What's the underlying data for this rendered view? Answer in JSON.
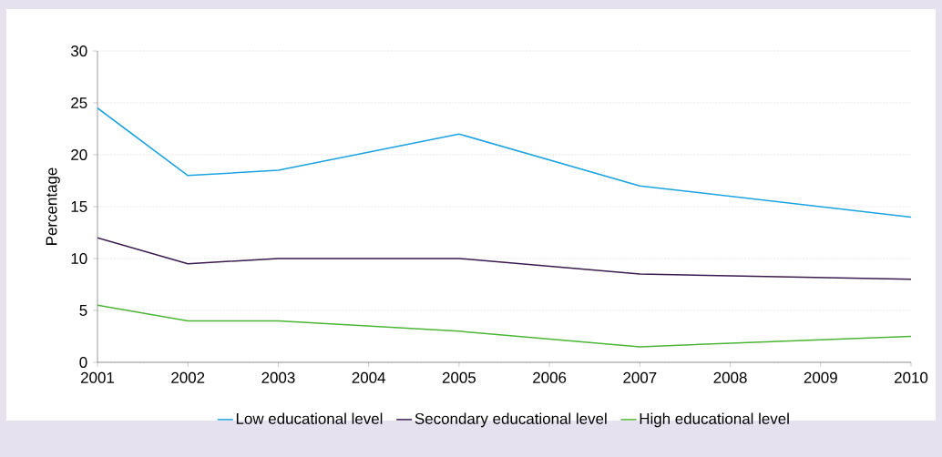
{
  "chart_data": {
    "type": "line",
    "ylabel": "Percentage",
    "x": [
      2001,
      2002,
      2003,
      2005,
      2007,
      2010
    ],
    "xlim": [
      2001,
      2010
    ],
    "xticks": [
      2001,
      2002,
      2003,
      2004,
      2005,
      2006,
      2007,
      2008,
      2009,
      2010
    ],
    "ylim": [
      0,
      30
    ],
    "yticks": [
      0,
      5,
      10,
      15,
      20,
      25,
      30
    ],
    "grid": "y",
    "legend": "bottom",
    "marker": "none",
    "line_style": "solid",
    "series": [
      {
        "name": "Low educational level",
        "color": "#1aa3e0",
        "values": [
          24.5,
          18,
          18.5,
          22,
          17,
          14
        ]
      },
      {
        "name": "Secondary educational level",
        "color": "#3b1a4f",
        "values": [
          12,
          9.5,
          10,
          10,
          8.5,
          8
        ]
      },
      {
        "name": "High educational level",
        "color": "#4cb535",
        "values": [
          5.5,
          4,
          4,
          3,
          1.5,
          2.5
        ]
      }
    ]
  }
}
